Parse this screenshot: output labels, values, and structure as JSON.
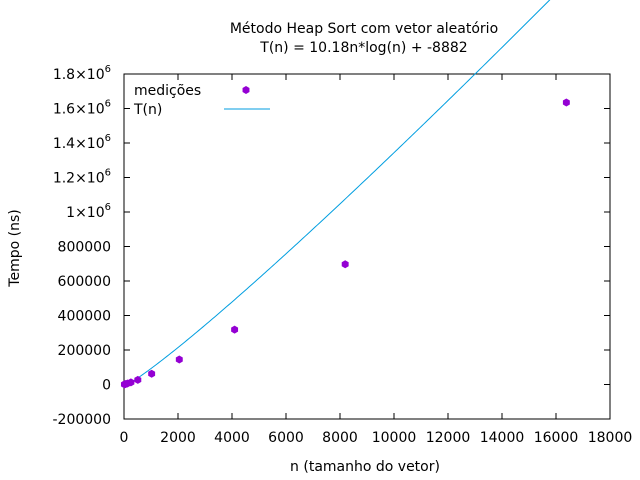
{
  "chart_data": {
    "type": "scatter",
    "title": "Método Heap Sort com vetor aleatório",
    "subtitle": "T(n) = 10.18n*log(n) + -8882",
    "xlabel": "n (tamanho do vetor)",
    "ylabel": "Tempo (ns)",
    "xlim": [
      0,
      18000
    ],
    "ylim": [
      -200000,
      1800000
    ],
    "x_ticks": [
      "0",
      "2000",
      "4000",
      "6000",
      "8000",
      "10000",
      "12000",
      "14000",
      "16000",
      "18000"
    ],
    "y_ticks": [
      {
        "value": -200000,
        "base": "-200000",
        "exp": ""
      },
      {
        "value": 0,
        "base": "0",
        "exp": ""
      },
      {
        "value": 200000,
        "base": "200000",
        "exp": ""
      },
      {
        "value": 400000,
        "base": "400000",
        "exp": ""
      },
      {
        "value": 600000,
        "base": "600000",
        "exp": ""
      },
      {
        "value": 800000,
        "base": "800000",
        "exp": ""
      },
      {
        "value": 1000000,
        "base": "1×10",
        "exp": "6"
      },
      {
        "value": 1200000,
        "base": "1.2×10",
        "exp": "6"
      },
      {
        "value": 1400000,
        "base": "1.4×10",
        "exp": "6"
      },
      {
        "value": 1600000,
        "base": "1.6×10",
        "exp": "6"
      },
      {
        "value": 1800000,
        "base": "1.8×10",
        "exp": "6"
      }
    ],
    "grid": false,
    "legend_position": "top-left",
    "series": [
      {
        "name": "medições",
        "kind": "points",
        "color": "#9400d3",
        "x": [
          16,
          32,
          64,
          128,
          256,
          512,
          1024,
          2048,
          4096,
          8192,
          16384
        ],
        "y": [
          800,
          1500,
          2800,
          5500,
          12000,
          27000,
          62000,
          145000,
          318000,
          697000,
          1635000
        ]
      },
      {
        "name": "T(n)",
        "kind": "line",
        "color": "#009ee0",
        "formula": "10.18n*log(n) + -8882",
        "coef": 10.18,
        "offset": -8882,
        "log_base": 2,
        "x_range": [
          16,
          16384
        ]
      }
    ]
  }
}
